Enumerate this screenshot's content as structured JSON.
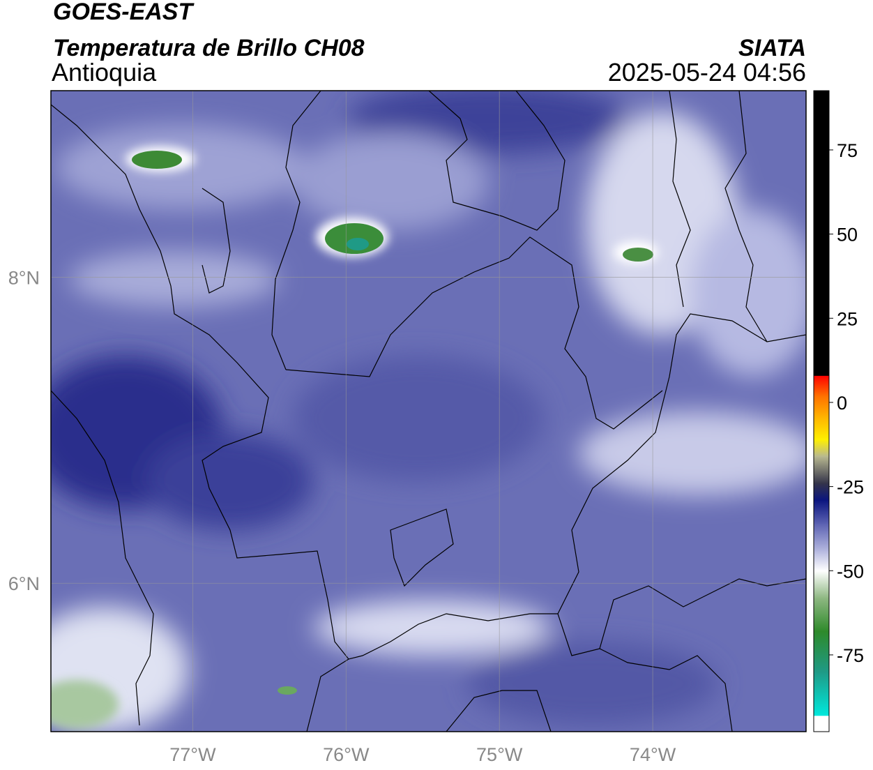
{
  "header": {
    "title": "GOES-EAST",
    "subtitle": "Temperatura de Brillo CH08",
    "region": "Antioquia",
    "source": "SIATA",
    "datetime": "2025-05-24 04:56"
  },
  "map": {
    "lon_range": [
      -77.925,
      -73.0
    ],
    "lat_range": [
      5.03,
      9.22
    ],
    "lon_ticks": [
      {
        "value": -77,
        "label": "77°W"
      },
      {
        "value": -76,
        "label": "76°W"
      },
      {
        "value": -75,
        "label": "75°W"
      },
      {
        "value": -74,
        "label": "74°W"
      }
    ],
    "lat_ticks": [
      {
        "value": 8,
        "label": "8°N"
      },
      {
        "value": 6,
        "label": "6°N"
      }
    ],
    "grid": true
  },
  "colorbar": {
    "range": [
      -97.8,
      92.6
    ],
    "ticks": [
      -75,
      -50,
      -25,
      0,
      25,
      50,
      75
    ],
    "stops": [
      {
        "value": -97.8,
        "color": "#ffffff"
      },
      {
        "value": -93,
        "color": "#ffffff"
      },
      {
        "value": -93,
        "color": "#00e8dc"
      },
      {
        "value": -80,
        "color": "#1f9a86"
      },
      {
        "value": -68,
        "color": "#2e8a2a"
      },
      {
        "value": -58,
        "color": "#8fb883"
      },
      {
        "value": -50,
        "color": "#ffffff"
      },
      {
        "value": -44,
        "color": "#b4b7df"
      },
      {
        "value": -36,
        "color": "#5b61b2"
      },
      {
        "value": -29,
        "color": "#0b157f"
      },
      {
        "value": -24,
        "color": "#34344a"
      },
      {
        "value": -16,
        "color": "#b8b890"
      },
      {
        "value": -11,
        "color": "#fff000"
      },
      {
        "value": -4,
        "color": "#ffb000"
      },
      {
        "value": 2,
        "color": "#ff7000"
      },
      {
        "value": 8,
        "color": "#ff0000"
      },
      {
        "value": 8,
        "color": "#000000"
      },
      {
        "value": 92.6,
        "color": "#000000"
      }
    ]
  }
}
